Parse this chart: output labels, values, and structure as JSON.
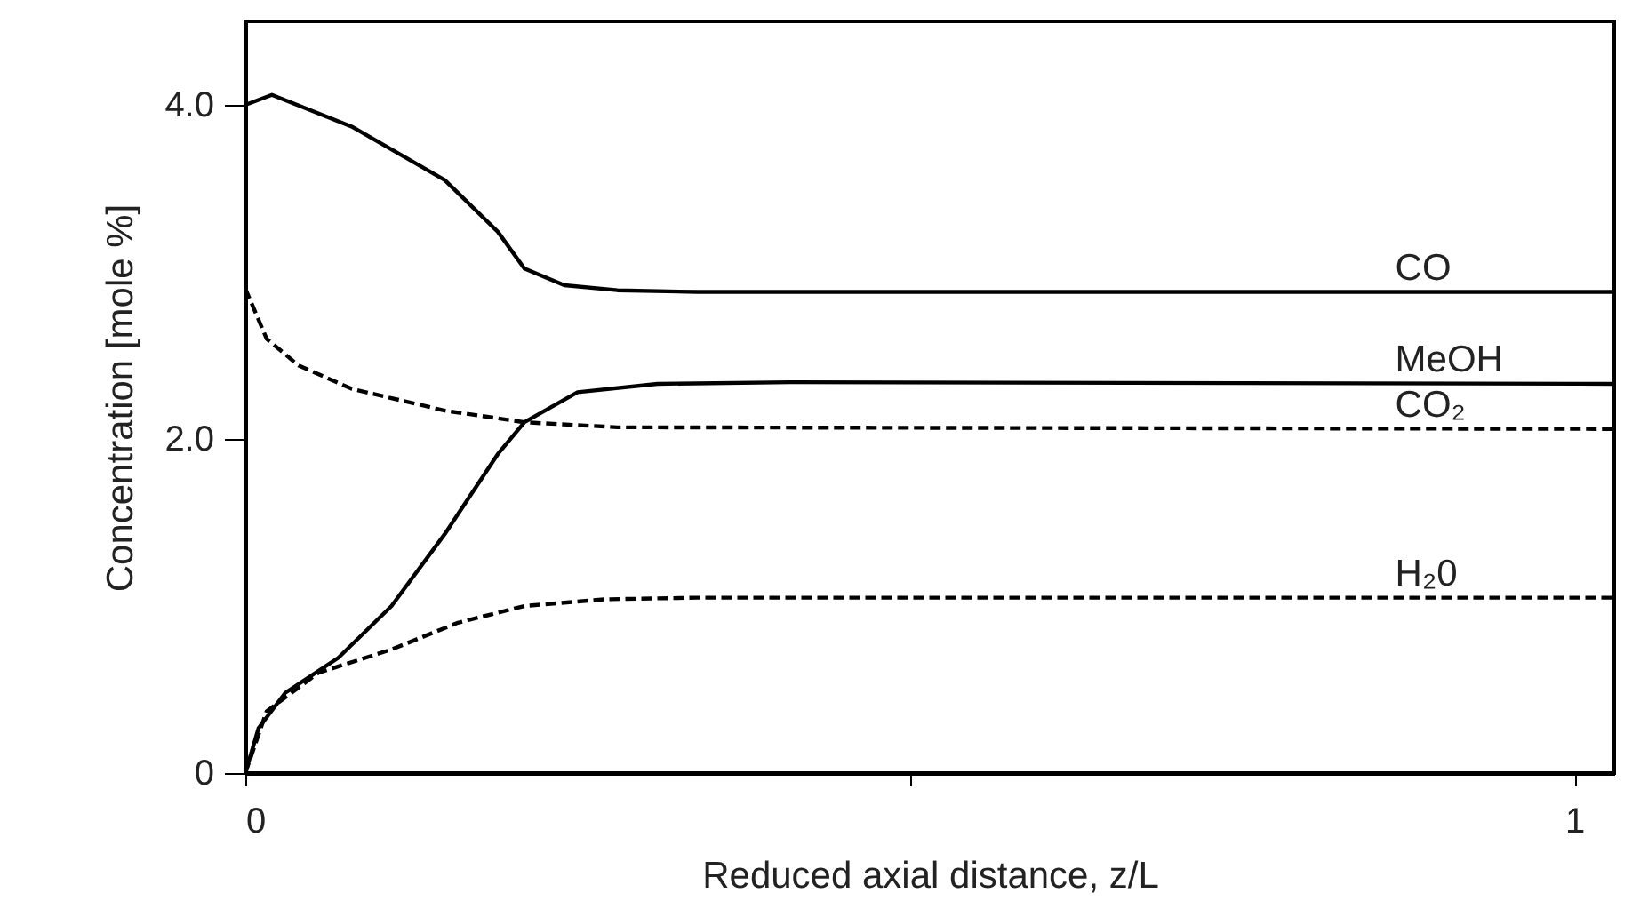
{
  "chart_data": {
    "type": "line",
    "xlabel": "Reduced axial distance, z/L",
    "ylabel": "Concentration  [mole %]",
    "xlim": [
      0,
      1.03
    ],
    "xticks": [
      0,
      {
        "value": 0.5,
        "label": null
      },
      1
    ],
    "ylim": [
      0,
      4.5
    ],
    "yticks": [
      0,
      {
        "value": 2,
        "label": "2.0"
      },
      {
        "value": 4,
        "label": "4.0"
      }
    ],
    "grid": false,
    "series": [
      {
        "name": "CO",
        "color": "#000000",
        "line_style": "solid",
        "x": [
          0,
          0.02,
          0.08,
          0.15,
          0.19,
          0.21,
          0.24,
          0.28,
          0.34,
          1.03
        ],
        "values": [
          4.0,
          4.06,
          3.87,
          3.55,
          3.24,
          3.02,
          2.92,
          2.89,
          2.88,
          2.88
        ]
      },
      {
        "name": "MeOH",
        "color": "#000000",
        "line_style": "solid",
        "x": [
          0,
          0.01,
          0.03,
          0.07,
          0.11,
          0.15,
          0.19,
          0.21,
          0.25,
          0.31,
          0.41,
          1.03
        ],
        "values": [
          0,
          0.27,
          0.48,
          0.69,
          1.0,
          1.43,
          1.91,
          2.1,
          2.28,
          2.33,
          2.34,
          2.33
        ]
      },
      {
        "name": "CO₂",
        "color": "#000000",
        "line_style": "dashed",
        "x": [
          0,
          0.016,
          0.04,
          0.08,
          0.15,
          0.21,
          0.28,
          1.03
        ],
        "values": [
          2.9,
          2.6,
          2.44,
          2.3,
          2.17,
          2.1,
          2.07,
          2.06
        ]
      },
      {
        "name": "H₂0",
        "color": "#000000",
        "line_style": "dashed",
        "x": [
          0,
          0.016,
          0.055,
          0.11,
          0.16,
          0.21,
          0.27,
          0.34,
          1.03
        ],
        "values": [
          0,
          0.37,
          0.6,
          0.74,
          0.9,
          1.0,
          1.04,
          1.05,
          1.05
        ]
      }
    ]
  }
}
